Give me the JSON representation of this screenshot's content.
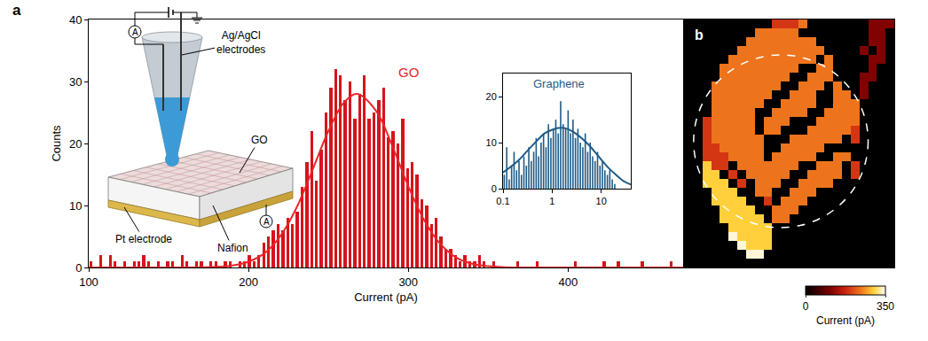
{
  "chart_data": [
    {
      "type": "histogram",
      "panel": "a",
      "x_label": "Current (pA)",
      "y_label": "Counts",
      "bins": [
        100,
        103,
        106,
        109,
        112,
        115,
        118,
        121,
        124,
        127,
        130,
        133,
        136,
        139,
        142,
        145,
        148,
        151,
        154,
        157,
        160,
        163,
        166,
        169,
        172,
        175,
        178,
        181,
        184,
        187,
        190,
        193,
        196,
        199,
        202,
        205,
        208,
        211,
        214,
        217,
        220,
        223,
        226,
        229,
        232,
        235,
        238,
        241,
        244,
        247,
        250,
        253,
        256,
        259,
        262,
        265,
        268,
        271,
        274,
        277,
        280,
        283,
        286,
        289,
        292,
        295,
        298,
        301,
        304,
        307,
        310,
        313,
        316,
        319,
        322,
        325,
        328,
        331,
        334,
        337,
        340,
        343,
        346,
        349,
        352,
        355,
        358,
        361,
        364,
        367,
        370,
        373,
        376,
        379,
        382,
        385,
        388,
        391,
        394,
        397,
        400,
        403,
        406,
        409,
        412,
        415,
        418,
        421,
        424,
        427,
        430,
        433,
        436,
        439,
        442,
        445,
        448,
        451,
        454,
        457,
        460,
        463,
        466,
        469,
        472
      ],
      "counts": [
        1,
        0,
        2,
        0,
        2,
        1,
        0,
        1,
        0,
        1,
        1,
        2,
        1,
        0,
        1,
        0,
        1,
        1,
        0,
        2,
        1,
        0,
        1,
        1,
        0,
        1,
        1,
        0,
        1,
        1,
        0,
        1,
        1,
        2,
        1,
        2,
        4,
        5,
        6,
        7,
        6,
        8,
        7,
        9,
        13,
        17,
        22,
        14,
        19,
        25,
        29,
        32,
        31,
        27,
        30,
        24,
        28,
        31,
        24,
        25,
        27,
        29,
        21,
        22,
        20,
        24,
        16,
        17,
        15,
        11,
        10,
        7,
        8,
        5,
        3,
        3,
        2,
        1,
        2,
        1,
        1,
        2,
        1,
        0,
        1,
        0,
        0,
        0,
        0,
        1,
        0,
        0,
        0,
        1,
        0,
        0,
        0,
        0,
        0,
        0,
        0,
        1,
        0,
        0,
        0,
        0,
        0,
        1,
        0,
        0,
        1,
        0,
        0,
        0,
        0,
        1,
        0,
        0,
        0,
        0,
        0,
        1,
        0,
        0
      ],
      "color": "#d6131b",
      "xlim": [
        100,
        472
      ],
      "xticks": [
        100,
        200,
        300,
        400
      ],
      "ylim": [
        0,
        40
      ],
      "yticks": [
        0,
        10,
        20,
        30,
        40
      ],
      "grid": false,
      "fit": {
        "name": "GO",
        "color": "#e8262a",
        "line_style": "solid",
        "x": [
          100,
          150,
          180,
          190,
          200,
          210,
          220,
          230,
          240,
          250,
          260,
          268,
          280,
          290,
          300,
          310,
          320,
          330,
          340,
          350,
          360,
          380,
          472
        ],
        "values": [
          0,
          0,
          0.09,
          0.31,
          0.92,
          2.3,
          5.1,
          9.6,
          15.7,
          22,
          26.7,
          28,
          25.2,
          19.6,
          13.1,
          7.6,
          3.8,
          1.6,
          0.6,
          0.2,
          0.05,
          0,
          0
        ]
      },
      "diagram": {
        "electrodes_label": [
          "Ag/AgCl",
          "electrodes"
        ],
        "film_label": "GO",
        "electrode_label": "Pt electrode",
        "membrane_label": "Nafion",
        "meter_symbol": "A"
      }
    },
    {
      "type": "histogram",
      "title": "Graphene",
      "bins": [
        0.1,
        0.112,
        0.126,
        0.141,
        0.158,
        0.178,
        0.2,
        0.224,
        0.251,
        0.282,
        0.316,
        0.355,
        0.398,
        0.447,
        0.501,
        0.562,
        0.631,
        0.708,
        0.794,
        0.891,
        1,
        1.12,
        1.26,
        1.41,
        1.58,
        1.78,
        2,
        2.24,
        2.51,
        2.82,
        3.16,
        3.55,
        3.98,
        4.47,
        5.01,
        5.62,
        6.31,
        7.08,
        7.94,
        8.91,
        10,
        11.2,
        12.6,
        14.1,
        15.8,
        17.8,
        20
      ],
      "counts": [
        3,
        9,
        2,
        5,
        8,
        4,
        6,
        3,
        7,
        5,
        9,
        6,
        8,
        11,
        7,
        10,
        12,
        9,
        14,
        11,
        13,
        15,
        12,
        19,
        14,
        13,
        17,
        12,
        15,
        11,
        13,
        10,
        9,
        12,
        8,
        10,
        7,
        6,
        8,
        5,
        6,
        4,
        3,
        4,
        2,
        1
      ],
      "color": "#1f5b87",
      "log": "x",
      "xlim": [
        0.1,
        40
      ],
      "xticks": [
        0.1,
        1,
        10
      ],
      "ylim": [
        0,
        25
      ],
      "yticks": [
        0,
        10,
        20
      ],
      "grid": false,
      "fit": {
        "color": "#1f5b87",
        "line_style": "solid",
        "x": [
          0.1,
          0.2,
          0.3,
          0.5,
          0.7,
          1,
          1.5,
          2,
          3,
          5,
          7,
          10,
          15,
          20,
          30,
          40
        ],
        "values": [
          3.5,
          6,
          8,
          10.5,
          12,
          12.8,
          13.2,
          13,
          12,
          10,
          8.3,
          6.3,
          4.2,
          3,
          1.5,
          0.9
        ]
      }
    },
    {
      "type": "heatmap",
      "panel": "b",
      "tick_labels": false,
      "zlim": [
        0,
        350
      ],
      "zticks": [
        0,
        350
      ],
      "colorbar_title": "Current (pA)",
      "z": [
        [
          0,
          0,
          0,
          0,
          0,
          0,
          0,
          0,
          0,
          0,
          190,
          190,
          190,
          240,
          0,
          0,
          0,
          0,
          0,
          0,
          0,
          110,
          110,
          110
        ],
        [
          0,
          0,
          0,
          0,
          0,
          0,
          0,
          0,
          240,
          240,
          240,
          240,
          240,
          0,
          0,
          0,
          0,
          0,
          0,
          0,
          0,
          110,
          110,
          0
        ],
        [
          0,
          0,
          0,
          0,
          0,
          0,
          0,
          240,
          240,
          240,
          240,
          240,
          240,
          240,
          240,
          0,
          0,
          0,
          0,
          0,
          0,
          110,
          110,
          0
        ],
        [
          0,
          0,
          0,
          0,
          0,
          0,
          240,
          240,
          240,
          240,
          240,
          240,
          240,
          240,
          240,
          240,
          0,
          0,
          0,
          0,
          110,
          0,
          110,
          0
        ],
        [
          0,
          0,
          0,
          0,
          0,
          240,
          240,
          240,
          240,
          240,
          240,
          240,
          240,
          240,
          240,
          0,
          240,
          0,
          0,
          0,
          0,
          110,
          110,
          0
        ],
        [
          0,
          0,
          0,
          0,
          240,
          240,
          240,
          240,
          240,
          240,
          240,
          240,
          240,
          0,
          0,
          240,
          240,
          0,
          0,
          0,
          0,
          110,
          0,
          0
        ],
        [
          0,
          0,
          0,
          0,
          240,
          240,
          240,
          240,
          240,
          240,
          240,
          240,
          0,
          0,
          240,
          240,
          240,
          0,
          0,
          0,
          110,
          110,
          0,
          0
        ],
        [
          0,
          0,
          0,
          240,
          240,
          240,
          240,
          240,
          240,
          240,
          240,
          0,
          0,
          240,
          240,
          240,
          0,
          240,
          0,
          0,
          110,
          0,
          0,
          0
        ],
        [
          0,
          0,
          0,
          240,
          240,
          240,
          240,
          240,
          240,
          240,
          0,
          0,
          240,
          240,
          240,
          0,
          0,
          240,
          240,
          0,
          110,
          0,
          0,
          0
        ],
        [
          0,
          0,
          0,
          240,
          240,
          240,
          240,
          240,
          240,
          0,
          0,
          240,
          240,
          240,
          240,
          0,
          0,
          240,
          240,
          240,
          0,
          0,
          0,
          0
        ],
        [
          0,
          0,
          0,
          240,
          240,
          240,
          240,
          240,
          0,
          0,
          240,
          240,
          240,
          240,
          0,
          0,
          240,
          240,
          240,
          240,
          0,
          0,
          0,
          0
        ],
        [
          0,
          0,
          190,
          240,
          240,
          240,
          240,
          240,
          0,
          240,
          240,
          240,
          0,
          0,
          0,
          240,
          240,
          240,
          240,
          240,
          0,
          0,
          0,
          0
        ],
        [
          0,
          0,
          190,
          240,
          240,
          240,
          240,
          240,
          0,
          240,
          240,
          0,
          0,
          0,
          240,
          240,
          240,
          240,
          240,
          190,
          0,
          0,
          0,
          0
        ],
        [
          0,
          0,
          190,
          240,
          240,
          240,
          240,
          240,
          240,
          0,
          0,
          0,
          240,
          240,
          240,
          240,
          240,
          240,
          0,
          190,
          0,
          0,
          0,
          0
        ],
        [
          0,
          0,
          190,
          190,
          240,
          240,
          240,
          240,
          240,
          0,
          0,
          240,
          240,
          240,
          240,
          240,
          0,
          0,
          0,
          0,
          0,
          0,
          0,
          0
        ],
        [
          0,
          0,
          190,
          190,
          190,
          240,
          240,
          240,
          240,
          0,
          240,
          240,
          240,
          240,
          240,
          0,
          0,
          240,
          240,
          0,
          0,
          0,
          0,
          0
        ],
        [
          0,
          0,
          300,
          190,
          190,
          0,
          240,
          240,
          240,
          240,
          240,
          240,
          240,
          0,
          0,
          240,
          240,
          240,
          0,
          190,
          0,
          0,
          0,
          0
        ],
        [
          0,
          0,
          300,
          300,
          0,
          190,
          0,
          240,
          240,
          240,
          240,
          240,
          0,
          0,
          240,
          240,
          240,
          240,
          0,
          190,
          0,
          0,
          0,
          0
        ],
        [
          0,
          0,
          300,
          300,
          300,
          0,
          190,
          0,
          240,
          240,
          240,
          0,
          0,
          240,
          240,
          240,
          240,
          0,
          0,
          0,
          0,
          0,
          0,
          0
        ],
        [
          0,
          0,
          0,
          300,
          300,
          300,
          0,
          0,
          240,
          240,
          0,
          0,
          240,
          240,
          240,
          0,
          0,
          0,
          0,
          0,
          0,
          0,
          0,
          0
        ],
        [
          0,
          0,
          0,
          300,
          300,
          300,
          300,
          0,
          0,
          190,
          0,
          240,
          240,
          240,
          0,
          0,
          0,
          0,
          0,
          0,
          0,
          0,
          0,
          0
        ],
        [
          0,
          0,
          0,
          0,
          300,
          300,
          300,
          300,
          0,
          0,
          240,
          240,
          240,
          0,
          0,
          0,
          0,
          0,
          0,
          0,
          0,
          0,
          0,
          0
        ],
        [
          0,
          0,
          0,
          0,
          300,
          300,
          300,
          300,
          300,
          0,
          240,
          240,
          0,
          0,
          0,
          0,
          0,
          0,
          0,
          0,
          0,
          0,
          0,
          0
        ],
        [
          0,
          0,
          0,
          0,
          0,
          300,
          300,
          300,
          300,
          300,
          0,
          0,
          0,
          0,
          0,
          0,
          0,
          0,
          0,
          0,
          0,
          0,
          0,
          0
        ],
        [
          0,
          0,
          0,
          0,
          0,
          340,
          300,
          300,
          300,
          300,
          0,
          0,
          0,
          0,
          0,
          0,
          0,
          0,
          0,
          0,
          0,
          0,
          0,
          0
        ],
        [
          0,
          0,
          0,
          0,
          0,
          0,
          340,
          300,
          300,
          300,
          0,
          0,
          0,
          0,
          0,
          0,
          0,
          0,
          0,
          0,
          0,
          0,
          0,
          0
        ],
        [
          0,
          0,
          0,
          0,
          0,
          0,
          0,
          340,
          340,
          0,
          0,
          0,
          0,
          0,
          0,
          0,
          0,
          0,
          0,
          0,
          0,
          0,
          0,
          0
        ],
        [
          0,
          0,
          0,
          0,
          0,
          0,
          0,
          0,
          0,
          0,
          0,
          0,
          0,
          0,
          0,
          0,
          0,
          0,
          0,
          0,
          0,
          0,
          0,
          0
        ]
      ]
    }
  ]
}
